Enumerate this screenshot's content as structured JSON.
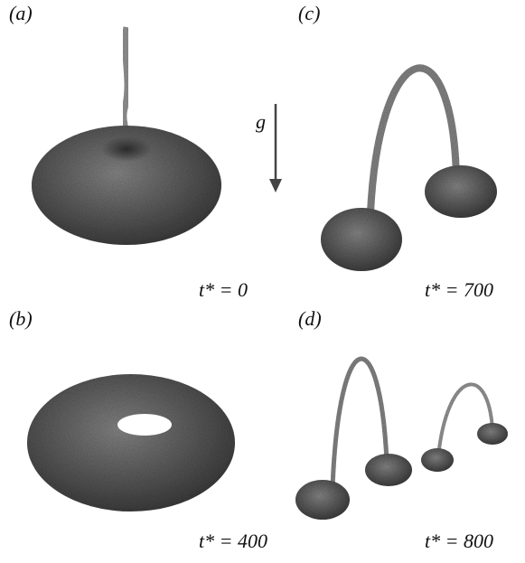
{
  "panels": [
    {
      "label": "(a)",
      "time": "t* = 0"
    },
    {
      "label": "(b)",
      "time": "t* = 400"
    },
    {
      "label": "(c)",
      "time": "t* = 700"
    },
    {
      "label": "(d)",
      "time": "t* = 800"
    }
  ],
  "gravity": "g"
}
